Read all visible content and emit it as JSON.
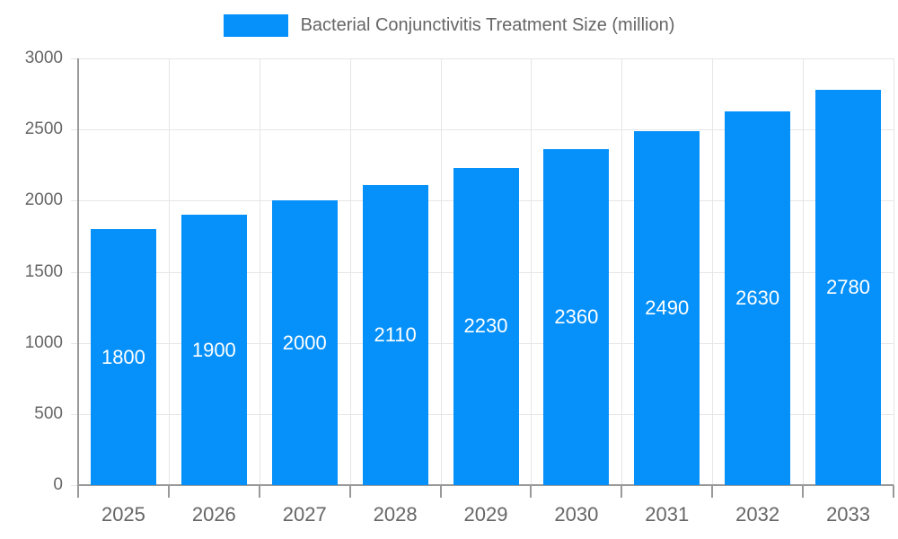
{
  "legend": {
    "label": "Bacterial Conjunctivitis Treatment Size (million)"
  },
  "chart_data": {
    "type": "bar",
    "title": "Bacterial Conjunctivitis Treatment Size (million)",
    "categories": [
      "2025",
      "2026",
      "2027",
      "2028",
      "2029",
      "2030",
      "2031",
      "2032",
      "2033"
    ],
    "series": [
      {
        "name": "Bacterial Conjunctivitis Treatment Size (million)",
        "values": [
          1800,
          1900,
          2000,
          2110,
          2230,
          2360,
          2490,
          2630,
          2780
        ]
      }
    ],
    "xlabel": "",
    "ylabel": "",
    "ylim": [
      0,
      3000
    ],
    "yticks": [
      0,
      500,
      1000,
      1500,
      2000,
      2500,
      3000
    ],
    "grid": true,
    "legend_position": "top",
    "data_labels": "inside-center"
  },
  "colors": {
    "bar": "#0691fa",
    "axis_line": "#999999",
    "gridline": "#e6e6e6",
    "axis_text": "#666666",
    "bar_label": "#ffffff",
    "background": "#ffffff"
  }
}
